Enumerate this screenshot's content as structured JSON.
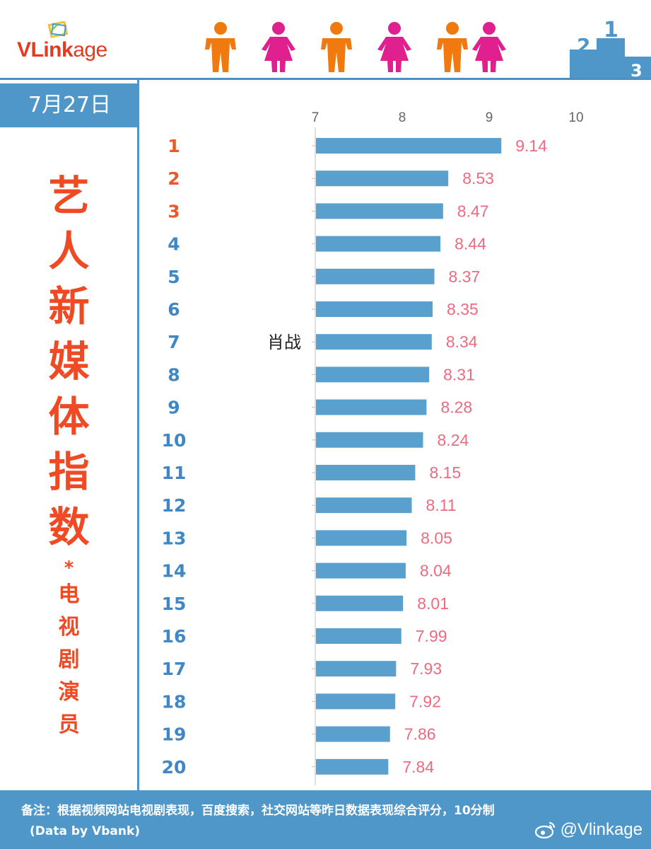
{
  "header": {
    "logo_bold": "VLink",
    "logo_rest": "age"
  },
  "date": "7月27日",
  "title": {
    "main": [
      "艺",
      "人",
      "新",
      "媒",
      "体",
      "指",
      "数"
    ],
    "star": "*",
    "sub": [
      "电",
      "视",
      "剧",
      "演",
      "员"
    ]
  },
  "colors": {
    "accent_blue": "#4f97c9",
    "bar_blue": "#5aa0cf",
    "title_red": "#ef4a23",
    "rank_top": "#e85a2a",
    "rank_other": "#3f88c5",
    "value_pink": "#ec6b7f"
  },
  "chart_data": {
    "type": "bar",
    "orientation": "horizontal",
    "x_ticks": [
      7,
      8,
      9,
      10
    ],
    "xlim": [
      7,
      10
    ],
    "ranks": [
      "1",
      "2",
      "3",
      "4",
      "5",
      "6",
      "7",
      "8",
      "9",
      "10",
      "11",
      "12",
      "13",
      "14",
      "15",
      "16",
      "17",
      "18",
      "19",
      "20"
    ],
    "labels": [
      "",
      "",
      "",
      "",
      "",
      "",
      "肖战",
      "",
      "",
      "",
      "",
      "",
      "",
      "",
      "",
      "",
      "",
      "",
      "",
      ""
    ],
    "values": [
      9.14,
      8.53,
      8.47,
      8.44,
      8.37,
      8.35,
      8.34,
      8.31,
      8.28,
      8.24,
      8.15,
      8.11,
      8.05,
      8.04,
      8.01,
      7.99,
      7.93,
      7.92,
      7.86,
      7.84
    ],
    "value_labels": [
      "9.14",
      "8.53",
      "8.47",
      "8.44",
      "8.37",
      "8.35",
      "8.34",
      "8.31",
      "8.28",
      "8.24",
      "8.15",
      "8.11",
      "8.05",
      "8.04",
      "8.01",
      "7.99",
      "7.93",
      "7.92",
      "7.86",
      "7.84"
    ],
    "top_ranks_highlighted": 3
  },
  "footer": {
    "note": "备注：根据视频网站电视剧表现，百度搜索，社交网站等昨日数据表现综合评分，10分制",
    "data_by": "(Data by Vbank)",
    "handle": "@Vlinkage"
  }
}
